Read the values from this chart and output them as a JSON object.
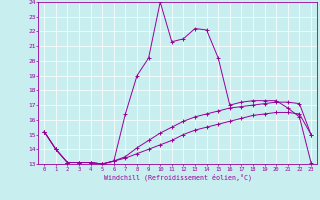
{
  "xlabel": "Windchill (Refroidissement éolien,°C)",
  "xlim": [
    -0.5,
    23.5
  ],
  "ylim": [
    13,
    24
  ],
  "yticks": [
    13,
    14,
    15,
    16,
    17,
    18,
    19,
    20,
    21,
    22,
    23,
    24
  ],
  "xticks": [
    0,
    1,
    2,
    3,
    4,
    5,
    6,
    7,
    8,
    9,
    10,
    11,
    12,
    13,
    14,
    15,
    16,
    17,
    18,
    19,
    20,
    21,
    22,
    23
  ],
  "bg_color": "#c8eef0",
  "line_color": "#990099",
  "grid_color": "#ffffff",
  "series1_x": [
    0,
    1,
    2,
    3,
    4,
    5,
    6,
    7,
    8,
    9,
    10,
    11,
    12,
    13,
    14,
    15,
    16,
    17,
    18,
    19,
    20,
    21,
    22,
    23
  ],
  "series1_y": [
    15.2,
    14.0,
    13.1,
    13.1,
    13.1,
    13.0,
    13.2,
    16.4,
    19.0,
    20.2,
    24.0,
    21.3,
    21.5,
    22.2,
    22.1,
    20.2,
    17.0,
    17.2,
    17.3,
    17.3,
    17.3,
    16.8,
    16.2,
    13.1
  ],
  "series2_x": [
    0,
    1,
    2,
    3,
    4,
    5,
    6,
    7,
    8,
    9,
    10,
    11,
    12,
    13,
    14,
    15,
    16,
    17,
    18,
    19,
    20,
    21,
    22,
    23
  ],
  "series2_y": [
    15.2,
    14.0,
    13.1,
    13.1,
    13.1,
    13.0,
    13.2,
    13.5,
    14.1,
    14.6,
    15.1,
    15.5,
    15.9,
    16.2,
    16.4,
    16.6,
    16.8,
    16.9,
    17.0,
    17.1,
    17.2,
    17.2,
    17.1,
    15.0
  ],
  "series3_x": [
    0,
    1,
    2,
    3,
    4,
    5,
    6,
    7,
    8,
    9,
    10,
    11,
    12,
    13,
    14,
    15,
    16,
    17,
    18,
    19,
    20,
    21,
    22,
    23
  ],
  "series3_y": [
    15.2,
    14.0,
    13.1,
    13.1,
    13.1,
    13.0,
    13.2,
    13.4,
    13.7,
    14.0,
    14.3,
    14.6,
    15.0,
    15.3,
    15.5,
    15.7,
    15.9,
    16.1,
    16.3,
    16.4,
    16.5,
    16.5,
    16.4,
    15.0
  ]
}
